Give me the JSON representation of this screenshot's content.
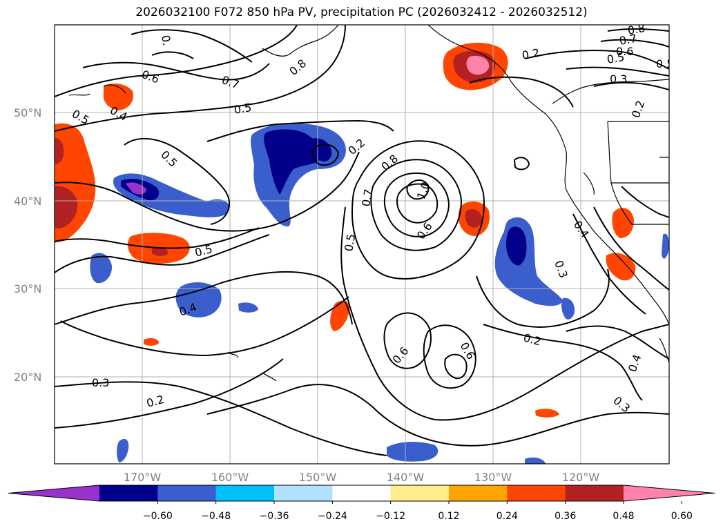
{
  "title": "2026032100 F072 850 hPa PV, precipitation PC (2026032412 - 2026032512)",
  "lat_labels": [
    "50°N",
    "40°N",
    "30°N",
    "20°N"
  ],
  "lon_labels": [
    "170°W",
    "160°W",
    "150°W",
    "140°W",
    "130°W",
    "120°W"
  ],
  "colorbar": {
    "colors": [
      "#9932cc",
      "#00008b",
      "#3a5fcd",
      "#00bfff",
      "#b0e2ff",
      "#ffffff",
      "#ffec8b",
      "#ffa500",
      "#ff4500",
      "#b22222",
      "#ff82ab"
    ],
    "tick_labels": [
      "−0.60",
      "−0.48",
      "−0.36",
      "−0.24",
      "−0.12",
      "0.12",
      "0.24",
      "0.36",
      "0.48",
      "0.60"
    ]
  },
  "contour_labels": [
    "0.2",
    "0.2",
    "0.2",
    "0.2",
    "0.2",
    "0.3",
    "0.3",
    "0.3",
    "0.3",
    "0.4",
    "0.4",
    "0.4",
    "0.4",
    "0.5",
    "0.5",
    "0.5",
    "0.5",
    "0.5",
    "0.5",
    "0.5",
    "0.6",
    "0.6",
    "0.6",
    "0.6",
    "0.6",
    "0.7",
    "0.7",
    "0.7",
    "0.8",
    "0.8",
    "0.8",
    "1.0",
    "0."
  ]
}
